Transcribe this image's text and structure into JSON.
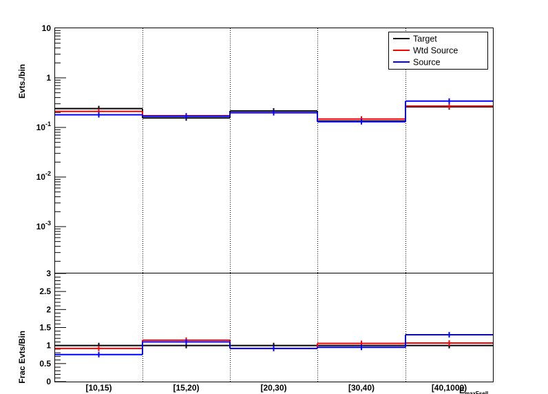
{
  "chart_data": [
    {
      "type": "line",
      "panel": "top",
      "ylabel": "Evts./bin",
      "yscale": "log",
      "ylim": [
        0.0001,
        10
      ],
      "y_tick_labels": [
        "10",
        "1",
        "10^-1",
        "10^-2",
        "10^-3"
      ],
      "categories": [
        "[10,15)",
        "[15,20)",
        "[20,30)",
        "[30,40)",
        "[40,1000)"
      ],
      "series": [
        {
          "name": "Target",
          "color": "#000000",
          "values": [
            0.24,
            0.155,
            0.215,
            0.135,
            0.26
          ]
        },
        {
          "name": "Wtd Source",
          "color": "#ff0000",
          "values": [
            0.21,
            0.172,
            0.198,
            0.148,
            0.27
          ]
        },
        {
          "name": "Source",
          "color": "#0000ff",
          "values": [
            0.18,
            0.168,
            0.198,
            0.13,
            0.34
          ]
        }
      ],
      "legend": "top-right",
      "grid_x": true
    },
    {
      "type": "line",
      "panel": "bottom",
      "ylabel": "Frac Evts/Bin",
      "xlabel": "E_maxFsell",
      "ylim": [
        0,
        3
      ],
      "y_tick_labels": [
        "0",
        "0.5",
        "1",
        "1.5",
        "2",
        "2.5",
        "3"
      ],
      "categories": [
        "[10,15)",
        "[15,20)",
        "[20,30)",
        "[30,40)",
        "[40,1000)"
      ],
      "series": [
        {
          "name": "Target",
          "color": "#000000",
          "values": [
            1.0,
            1.0,
            1.0,
            1.0,
            1.0
          ]
        },
        {
          "name": "Wtd Source",
          "color": "#ff0000",
          "values": [
            0.92,
            1.15,
            0.92,
            1.06,
            1.07
          ]
        },
        {
          "name": "Source",
          "color": "#0000ff",
          "values": [
            0.75,
            1.1,
            0.92,
            0.95,
            1.3
          ]
        }
      ],
      "grid_x": true
    }
  ]
}
